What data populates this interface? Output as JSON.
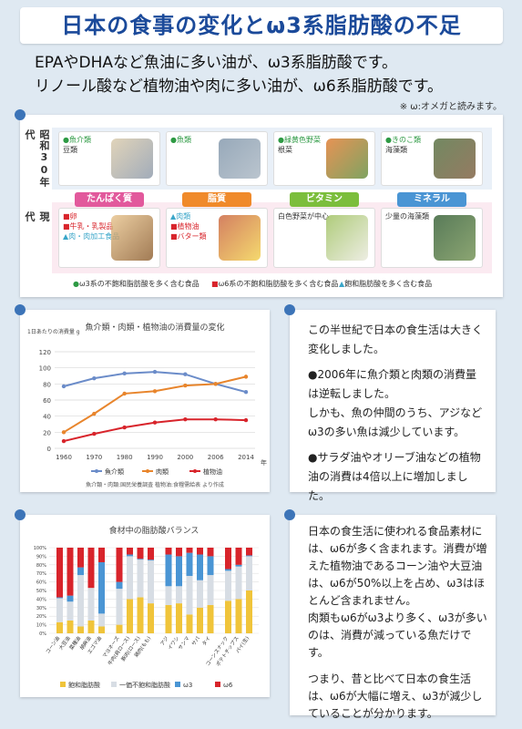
{
  "title": "日本の食事の変化とω3系脂肪酸の不足",
  "intro": {
    "line1": "EPAやDHAなど魚油に多い油が、ω3系脂肪酸です。",
    "line2": "リノール酸など植物油や肉に多い油が、ω6系脂肪酸です。",
    "note": "※ ω:オメガと読みます。"
  },
  "food_table": {
    "era_old": "昭和30年代",
    "era_now": "現代",
    "categories": [
      {
        "label": "たんぱく質",
        "color": "#e2599c"
      },
      {
        "label": "脂質",
        "color": "#f08a2a"
      },
      {
        "label": "ビタミン",
        "color": "#7cbe3c"
      },
      {
        "label": "ミネラル",
        "color": "#4a95d4"
      }
    ],
    "old_cells": [
      [
        "●魚介類",
        "豆類"
      ],
      [
        "●魚類"
      ],
      [
        "●緑黄色野菜",
        "根菜"
      ],
      [
        "●きのこ類",
        "海藻類"
      ]
    ],
    "now_cells": [
      [
        "■卵",
        "■牛乳・乳製品",
        "▲肉・肉加工食品"
      ],
      [
        "▲肉類",
        "■植物油",
        "■バター類"
      ],
      [
        "白色野菜が中心"
      ],
      [
        "少量の海藻類"
      ]
    ],
    "legend": [
      {
        "mark": "●",
        "text": "ω3系の不飽和脂肪酸を多く含む食品",
        "color": "#2e9a44"
      },
      {
        "mark": "■",
        "text": "ω6系の不飽和脂肪酸を多く含む食品",
        "color": "#d8242b"
      },
      {
        "mark": "▲",
        "text": "飽和脂肪酸を多く含む食品",
        "color": "#3aa6c9"
      }
    ]
  },
  "chart_data": [
    {
      "type": "line",
      "title": "魚介類・肉類・植物油の消費量の変化",
      "ylabel": "1日あたりの消費量 g",
      "xlabel": "年",
      "x": [
        "1960",
        "1970",
        "1980",
        "1990",
        "2000",
        "2006",
        "2014"
      ],
      "ylim": [
        0,
        120
      ],
      "yticks": [
        "0",
        "20",
        "40",
        "60",
        "80",
        "100",
        "120"
      ],
      "series": [
        {
          "name": "魚介類",
          "color": "#6b8cc9",
          "values": [
            77,
            87,
            93,
            95,
            92,
            80,
            70
          ]
        },
        {
          "name": "肉類",
          "color": "#e8852c",
          "values": [
            20,
            43,
            68,
            71,
            78,
            80,
            89
          ]
        },
        {
          "name": "植物油",
          "color": "#d8242b",
          "values": [
            9,
            18,
            26,
            32,
            36,
            36,
            35
          ]
        }
      ],
      "source": "魚介類・肉類:国民栄養調査 植物油:食糧需給表 より作成"
    },
    {
      "type": "bar",
      "title": "食材中の脂肪酸バランス",
      "yticks": [
        "0%",
        "10%",
        "20%",
        "30%",
        "40%",
        "50%",
        "60%",
        "70%",
        "80%",
        "90%",
        "100%"
      ],
      "category_labels": [
        "コーン油",
        "大豆油",
        "菜種油",
        "胡麻油",
        "エゴマ油",
        "マヨネーズ",
        "牛肉(肩ロース)",
        "豚肉(ロース)",
        "鶏肉(もも)",
        "アジ",
        "イワシ",
        "サンマ",
        "サバ",
        "タイ",
        "コーンスナック",
        "ポテトチップス",
        "パイ(生)"
      ],
      "series": [
        {
          "name": "飽和脂肪酸",
          "color": "#f0c43a",
          "values": [
            13,
            15,
            8,
            15,
            8,
            10,
            40,
            42,
            35,
            33,
            35,
            22,
            30,
            33,
            38,
            40,
            50
          ]
        },
        {
          "name": "一価不飽和脂肪酸",
          "color": "#d7dde4",
          "values": [
            28,
            22,
            60,
            38,
            15,
            42,
            50,
            44,
            50,
            22,
            20,
            45,
            32,
            35,
            35,
            38,
            40
          ]
        },
        {
          "name": "ω3",
          "color": "#4a95d4",
          "values": [
            1,
            7,
            9,
            0,
            60,
            8,
            2,
            1,
            1,
            37,
            35,
            27,
            30,
            22,
            2,
            2,
            1
          ]
        },
        {
          "name": "ω6",
          "color": "#d8242b",
          "values": [
            58,
            56,
            23,
            47,
            17,
            40,
            8,
            13,
            14,
            8,
            10,
            6,
            8,
            10,
            25,
            20,
            9
          ]
        }
      ]
    }
  ],
  "text1": {
    "p1": "この半世紀で日本の食生活は大きく変化しました。",
    "p2": "●2006年に魚介類と肉類の消費量は逆転しました。",
    "p3": "しかも、魚の仲間のうち、アジなどω3の多い魚は減少しています。",
    "p4": "●サラダ油やオリーブ油などの植物油の消費は4倍以上に増加しました。"
  },
  "text2": {
    "p1": "日本の食生活に使われる食品素材には、ω6が多く含まれます。消費が増えた植物油であるコーン油や大豆油は、ω6が50%以上を占め、ω3はほとんど含まれません。",
    "p2": "肉類もω6がω3より多く、ω3が多いのは、消費が減っている魚だけです。",
    "p3": "つまり、昔と比べて日本の食生活は、ω6が大幅に増え、ω3が減少していることが分かります。"
  }
}
